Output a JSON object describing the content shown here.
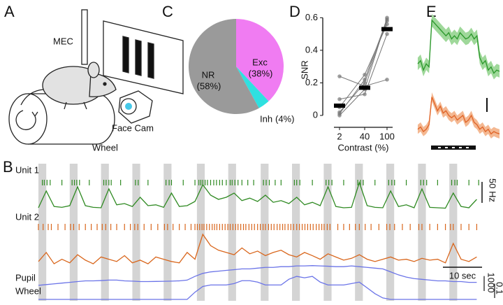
{
  "panel_labels": [
    "A",
    "B",
    "C",
    "D",
    "E"
  ],
  "illustration": {
    "electrode": "MEC",
    "camera": "Face Cam",
    "wheel": "Wheel"
  },
  "chart_data": [
    {
      "type": "pie",
      "categories": [
        "Exc",
        "Inh",
        "NR"
      ],
      "values": [
        38,
        4,
        58
      ],
      "value_labels": [
        "(38%)",
        "(4%)",
        "(58%)"
      ],
      "colors": [
        "#f07cf2",
        "#2fe0e0",
        "#9a9a9a"
      ]
    },
    {
      "type": "line",
      "xlabel": "Contrast (%)",
      "ylabel": "SNR",
      "categories": [
        "2",
        "40",
        "100"
      ],
      "ylim": [
        -0.06,
        0.64
      ],
      "yticks": [
        0,
        0.2,
        0.4,
        0.6
      ],
      "series": [
        {
          "color": "#777777",
          "values": [
            0.0,
            0.16,
            0.6
          ]
        },
        {
          "color": "#777777",
          "values": [
            0.02,
            0.2,
            0.58
          ]
        },
        {
          "color": "#777777",
          "values": [
            0.05,
            0.25,
            0.56
          ]
        },
        {
          "color": "#777777",
          "values": [
            0.1,
            0.13,
            0.5
          ]
        },
        {
          "color": "#777777",
          "values": [
            0.01,
            0.22,
            0.59
          ]
        },
        {
          "color": "#777777",
          "values": [
            0.24,
            0.18,
            0.22
          ]
        }
      ],
      "means": {
        "color": "#000000",
        "values": [
          0.06,
          0.17,
          0.53
        ]
      }
    },
    {
      "type": "mean-traces",
      "series": [
        {
          "color": "#2f9a2f",
          "band_color": "#9fd89a",
          "ylim": [
            0,
            1.1
          ],
          "error": 0.1,
          "values": [
            0.3,
            0.35,
            0.2,
            0.3,
            0.25,
            1.0,
            0.95,
            0.9,
            0.85,
            0.8,
            0.75,
            0.8,
            0.7,
            0.75,
            0.7,
            0.8,
            0.75,
            0.7,
            0.72,
            0.78,
            0.7,
            0.75,
            0.4,
            0.3,
            0.35,
            0.2,
            0.25,
            0.15,
            0.2,
            0.18
          ]
        },
        {
          "color": "#e0662a",
          "band_color": "#f4b892",
          "ylim": [
            0,
            1.0
          ],
          "error": 0.1,
          "values": [
            0.2,
            0.25,
            0.15,
            0.2,
            0.3,
            0.9,
            0.75,
            0.6,
            0.7,
            0.55,
            0.6,
            0.5,
            0.45,
            0.5,
            0.4,
            0.45,
            0.5,
            0.35,
            0.4,
            0.5,
            0.35,
            0.3,
            0.2,
            0.25,
            0.15,
            0.2,
            0.1,
            0.15,
            0.12,
            0.1
          ]
        }
      ]
    },
    {
      "type": "traces",
      "xlim": [
        0,
        113
      ],
      "x": [
        0,
        2,
        4,
        6,
        8,
        10,
        12,
        14,
        16,
        18,
        20,
        22,
        24,
        26,
        28,
        30,
        32,
        34,
        36,
        38,
        40,
        42,
        44,
        46,
        48,
        50,
        52,
        54,
        56,
        58,
        60,
        62,
        64,
        66,
        68,
        70,
        72,
        74,
        76,
        78,
        80,
        82,
        84,
        86,
        88,
        90,
        92,
        94,
        96,
        98,
        100,
        102,
        104,
        106,
        108,
        110,
        112
      ],
      "stimulus_onsets": [
        0,
        8,
        16,
        24,
        32,
        40.5,
        48.5,
        56.8,
        64.8,
        72.9,
        80.9,
        88.9,
        97,
        105
      ],
      "stimulus_duration": 2,
      "stimulus_color": "#d4d4d4",
      "series": [
        {
          "name": "Unit 1",
          "color": "#2f8a22",
          "ylim": [
            0,
            70
          ],
          "values": [
            5,
            45,
            8,
            6,
            10,
            55,
            10,
            6,
            5,
            50,
            12,
            15,
            8,
            30,
            10,
            12,
            6,
            40,
            8,
            10,
            20,
            60,
            35,
            25,
            30,
            40,
            22,
            28,
            20,
            35,
            18,
            22,
            15,
            30,
            12,
            18,
            10,
            55,
            8,
            5,
            6,
            65,
            10,
            6,
            5,
            45,
            8,
            12,
            5,
            50,
            6,
            5,
            4,
            40,
            8,
            5,
            25
          ],
          "spikes": [
            1,
            1.5,
            2.2,
            3,
            6,
            8.6,
            9.2,
            9.8,
            10.5,
            13,
            16.7,
            17.3,
            18,
            18.6,
            21,
            24.8,
            25.5,
            28,
            32.6,
            33.4,
            34,
            37,
            40,
            41,
            41.5,
            42,
            42.6,
            43.2,
            44,
            44.8,
            45.5,
            46.3,
            47,
            48,
            49,
            49.5,
            50.2,
            51,
            52,
            53.5,
            55,
            57.5,
            58.2,
            59,
            60.5,
            62,
            65.4,
            66,
            66.8,
            70,
            73.5,
            74.2,
            75,
            78,
            81.6,
            82.3,
            83,
            86,
            89.5,
            90.3,
            91,
            94,
            97.7,
            98.4,
            99.2,
            102,
            105.6,
            106.4,
            107,
            110,
            112.5
          ]
        },
        {
          "name": "Unit 2",
          "color": "#d9661c",
          "ylim": [
            0,
            85
          ],
          "values": [
            25,
            45,
            20,
            30,
            22,
            40,
            28,
            20,
            35,
            30,
            25,
            38,
            22,
            28,
            20,
            35,
            30,
            25,
            22,
            45,
            30,
            85,
            60,
            50,
            45,
            40,
            55,
            42,
            48,
            38,
            45,
            50,
            40,
            35,
            45,
            38,
            30,
            42,
            35,
            28,
            32,
            40,
            30,
            25,
            30,
            35,
            28,
            30,
            25,
            32,
            28,
            30,
            22,
            65,
            30,
            25,
            35
          ],
          "spikes": [
            0,
            1.2,
            2.5,
            3.3,
            5,
            6.8,
            8.2,
            9,
            10.4,
            12,
            13.5,
            15,
            16.3,
            17.2,
            18.5,
            20,
            22,
            23.5,
            24.6,
            25.4,
            27,
            28.8,
            30.5,
            32.2,
            33,
            34.4,
            36,
            37.5,
            39,
            40,
            40.6,
            41.2,
            41.8,
            42.3,
            43,
            43.7,
            44.4,
            45,
            45.6,
            46.3,
            47,
            47.7,
            48.4,
            49,
            49.7,
            50.4,
            51,
            51.7,
            52.4,
            53,
            53.8,
            54.5,
            55.2,
            56,
            56.7,
            57.4,
            58,
            58.8,
            59.5,
            60.2,
            61,
            61.7,
            62.4,
            63,
            63.8,
            64.5,
            65.2,
            66,
            66.7,
            67.4,
            68.1,
            68.8,
            69.5,
            70.2,
            71,
            71.7,
            72.4,
            73,
            73.8,
            74.5,
            76.5,
            78,
            79.5,
            81,
            82,
            83.5,
            85,
            87,
            89,
            89.8,
            91,
            93,
            95,
            97.2,
            98,
            100,
            102,
            104,
            105.3,
            106,
            108,
            110,
            112
          ]
        },
        {
          "name": "Pupil",
          "color": "#6b74e8",
          "ylim": [
            1900,
            3400
          ],
          "values": [
            2000,
            2050,
            2100,
            2150,
            2200,
            2250,
            2300,
            2300,
            2320,
            2350,
            2350,
            2300,
            2280,
            2250,
            2250,
            2260,
            2270,
            2280,
            2300,
            2350,
            2600,
            2800,
            2900,
            2950,
            3000,
            3050,
            3100,
            3100,
            3150,
            3200,
            3200,
            3250,
            3250,
            3300,
            3300,
            3320,
            3300,
            3280,
            3250,
            3250,
            3300,
            3250,
            3200,
            3150,
            3100,
            2900,
            2700,
            2550,
            2450,
            2400,
            2350,
            2300,
            2300,
            2250,
            2250,
            2200,
            2200
          ]
        },
        {
          "name": "Wheel",
          "color": "#6b74e8",
          "ylim": [
            0,
            0.17
          ],
          "values": [
            0,
            0,
            0,
            0,
            0,
            0,
            0,
            0,
            0,
            0,
            0,
            0,
            0,
            0,
            0,
            0,
            0,
            0,
            0,
            0,
            0.05,
            0.09,
            0.1,
            0.1,
            0.1,
            0.11,
            0.13,
            0.13,
            0.12,
            0.1,
            0.1,
            0.1,
            0.14,
            0.16,
            0.15,
            0.16,
            0.12,
            0.1,
            0.1,
            0.1,
            0.11,
            0.12,
            0.08,
            0.04,
            0.01,
            0,
            0,
            0,
            0,
            0,
            0,
            0,
            0,
            0,
            0,
            0,
            0
          ]
        }
      ],
      "scale_bars": [
        {
          "value": 50,
          "label": "50 Hz"
        },
        {
          "value": 10,
          "label": "10 sec"
        },
        1000,
        0.1
      ]
    }
  ]
}
